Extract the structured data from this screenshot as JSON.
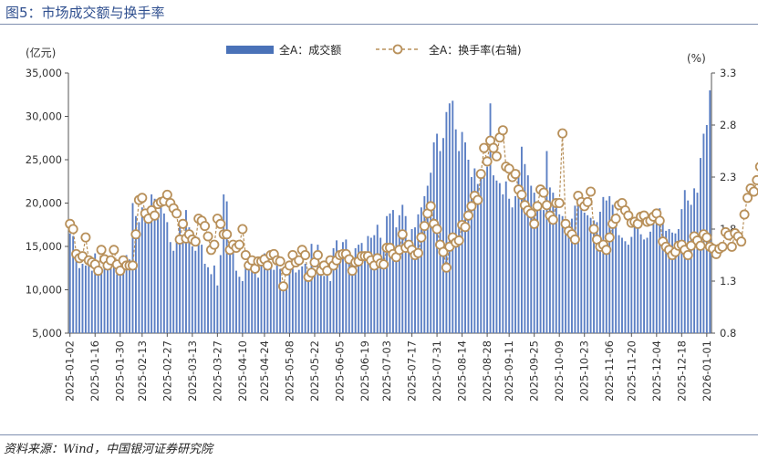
{
  "header": {
    "title": "图5：市场成交额与换手率"
  },
  "footer": {
    "source": "资料来源：Wind，中国银河证券研究院"
  },
  "chart_data": {
    "type": "bar+line",
    "title": "图5：市场成交额与换手率",
    "left_unit": "(亿元)",
    "right_unit": "(%)",
    "left_ylim": [
      5000,
      35000
    ],
    "left_ticks": [
      5000,
      10000,
      15000,
      20000,
      25000,
      30000,
      35000
    ],
    "left_tick_labels": [
      "5,000",
      "10,000",
      "15,000",
      "20,000",
      "25,000",
      "30,000",
      "35,000"
    ],
    "right_ylim": [
      0.8,
      3.3
    ],
    "right_ticks": [
      0.8,
      1.3,
      1.8,
      2.3,
      2.8,
      3.3
    ],
    "right_tick_labels": [
      "0.8",
      "1.3",
      "1.8",
      "2.3",
      "2.8",
      "3.3"
    ],
    "x_tick_labels": [
      "2025-01-02",
      "2025-01-16",
      "2025-01-30",
      "2025-02-13",
      "2025-02-27",
      "2025-03-13",
      "2025-03-27",
      "2025-04-10",
      "2025-04-24",
      "2025-05-08",
      "2025-05-22",
      "2025-06-05",
      "2025-06-19",
      "2025-07-03",
      "2025-07-17",
      "2025-07-31",
      "2025-08-14",
      "2025-08-28",
      "2025-09-11",
      "2025-09-25",
      "2025-10-09",
      "2025-10-23",
      "2025-11-06",
      "2025-11-20",
      "2025-12-04",
      "2025-12-18",
      "2026-01-01"
    ],
    "legend": [
      {
        "name": "全A：成交额",
        "kind": "bar",
        "color": "#4a72b8"
      },
      {
        "name": "全A：换手率(右轴)",
        "kind": "line",
        "color": "#b8905a"
      }
    ],
    "series": [
      {
        "name": "全A：成交额",
        "axis": "left",
        "values": [
          16500,
          16200,
          14000,
          12500,
          13000,
          12800,
          13500,
          12200,
          14200,
          13200,
          12600,
          14000,
          12400,
          13200,
          12800,
          11800,
          12800,
          12300,
          14000,
          13500,
          20000,
          18500,
          17800,
          19500,
          18200,
          19200,
          21000,
          20500,
          18500,
          20200,
          18800,
          17800,
          15500,
          14500,
          16200,
          18000,
          15500,
          19200,
          17200,
          15000,
          14500,
          16000,
          15200,
          13000,
          12600,
          11800,
          12800,
          10500,
          14000,
          21000,
          20200,
          15000,
          14800,
          12200,
          11500,
          11000,
          13000,
          12600,
          12200,
          12800,
          11400,
          13200,
          14200,
          13200,
          12500,
          12300,
          12800,
          12400,
          10500,
          10200,
          12700,
          12400,
          12000,
          12300,
          12700,
          13000,
          12200,
          15300,
          12000,
          15200,
          12200,
          11600,
          12400,
          11000,
          14800,
          15700,
          14200,
          15500,
          15800,
          14500,
          13500,
          14800,
          15200,
          15400,
          14300,
          16200,
          16000,
          16300,
          17500,
          16000,
          15000,
          18500,
          18800,
          19200,
          17200,
          18600,
          19800,
          18500,
          15200,
          17000,
          17200,
          18700,
          19500,
          20800,
          22000,
          23500,
          27000,
          28000,
          26000,
          27500,
          30500,
          31500,
          31800,
          28500,
          26000,
          28200,
          27000,
          25000,
          23000,
          24000,
          22200,
          23500,
          23000,
          24200,
          31500,
          23200,
          22600,
          22300,
          21000,
          22500,
          20500,
          19500,
          20800,
          23800,
          26500,
          24500,
          23200,
          22000,
          21200,
          20000,
          19500,
          19200,
          26000,
          21800,
          21200,
          19500,
          18700,
          18500,
          17300,
          17200,
          18200,
          19700,
          20400,
          19400,
          18900,
          18600,
          18300,
          18000,
          17800,
          19000,
          20700,
          20300,
          20800,
          19800,
          17800,
          16300,
          16000,
          15600,
          15200,
          16100,
          17500,
          17600,
          16400,
          15800,
          16000,
          16700,
          17800,
          18800,
          19400,
          18000,
          16800,
          17000,
          16600,
          16500,
          17000,
          19300,
          21500,
          20300,
          19800,
          21700,
          21200,
          25200,
          28000,
          29000,
          33000
        ]
      },
      {
        "name": "全A：换手率(右轴)",
        "axis": "right",
        "values": [
          1.85,
          1.8,
          1.56,
          1.52,
          1.54,
          1.72,
          1.5,
          1.48,
          1.46,
          1.4,
          1.6,
          1.51,
          1.45,
          1.5,
          1.6,
          1.46,
          1.4,
          1.5,
          1.45,
          1.45,
          1.45,
          1.75,
          2.08,
          2.1,
          1.95,
          1.9,
          1.98,
          1.93,
          2.04,
          2.06,
          2.07,
          2.13,
          2.05,
          2.0,
          1.95,
          1.7,
          1.85,
          1.71,
          1.75,
          1.7,
          1.68,
          1.9,
          1.88,
          1.83,
          1.73,
          1.6,
          1.65,
          1.9,
          1.85,
          1.75,
          1.75,
          1.6,
          1.65,
          1.62,
          1.65,
          1.8,
          1.55,
          1.45,
          1.5,
          1.42,
          1.49,
          1.49,
          1.51,
          1.45,
          1.55,
          1.56,
          1.5,
          1.49,
          1.25,
          1.4,
          1.45,
          1.55,
          1.48,
          1.5,
          1.6,
          1.55,
          1.34,
          1.38,
          1.48,
          1.55,
          1.4,
          1.45,
          1.4,
          1.5,
          1.45,
          1.5,
          1.55,
          1.56,
          1.56,
          1.51,
          1.4,
          1.48,
          1.49,
          1.54,
          1.54,
          1.54,
          1.5,
          1.45,
          1.52,
          1.47,
          1.46,
          1.62,
          1.62,
          1.56,
          1.53,
          1.6,
          1.75,
          1.62,
          1.65,
          1.6,
          1.55,
          1.57,
          1.72,
          1.83,
          1.95,
          2.02,
          1.85,
          1.8,
          1.65,
          1.58,
          1.43,
          1.63,
          1.72,
          1.67,
          1.69,
          1.84,
          1.82,
          1.93,
          2.02,
          2.12,
          2.08,
          2.33,
          2.58,
          2.45,
          2.65,
          2.58,
          2.5,
          2.68,
          2.75,
          2.4,
          2.38,
          2.3,
          2.33,
          2.18,
          2.13,
          2.03,
          1.98,
          1.95,
          1.85,
          2.02,
          2.18,
          2.15,
          2.03,
          1.93,
          1.89,
          2.05,
          2.05,
          2.72,
          1.85,
          1.78,
          1.75,
          1.7,
          2.12,
          2.06,
          2.02,
          2.06,
          2.16,
          1.8,
          1.7,
          1.63,
          1.65,
          1.6,
          1.72,
          1.85,
          1.9,
          2.03,
          2.05,
          1.98,
          1.93,
          1.86,
          1.87,
          1.85,
          1.92,
          1.93,
          1.87,
          1.88,
          1.92,
          1.95,
          1.88,
          1.68,
          1.63,
          1.6,
          1.55,
          1.58,
          1.64,
          1.65,
          1.6,
          1.55,
          1.64,
          1.73,
          1.69,
          1.64,
          1.75,
          1.72,
          1.63,
          1.61,
          1.56,
          1.61,
          1.63,
          1.77,
          1.74,
          1.63,
          1.76,
          1.73,
          1.68,
          1.94,
          2.1,
          2.19,
          2.16,
          2.27,
          2.4
        ]
      }
    ]
  }
}
